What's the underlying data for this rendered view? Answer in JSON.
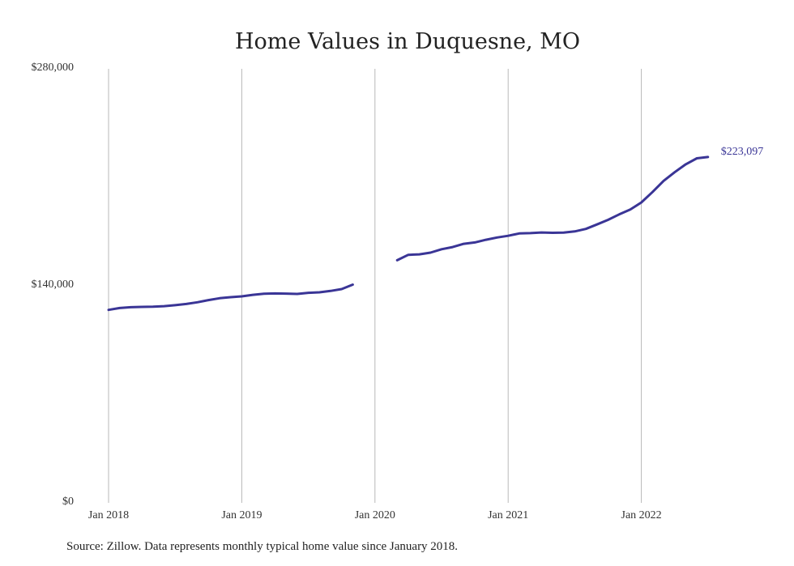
{
  "chart_data": {
    "type": "line",
    "title": "Home Values in Duquesne, MO",
    "xlabel": "",
    "ylabel": "",
    "x_ticks": [
      "Jan 2018",
      "Jan 2019",
      "Jan 2020",
      "Jan 2021",
      "Jan 2022"
    ],
    "y_ticks": [
      "$280,000",
      "$140,000",
      "$0"
    ],
    "y_tick_values": [
      280000,
      140000,
      0
    ],
    "ylim": [
      0,
      280000
    ],
    "xlim": [
      "2018-01",
      "2022-12"
    ],
    "grid": "vertical",
    "series": [
      {
        "color": "#3a3596",
        "end_label": "$223,097",
        "points": [
          {
            "x": "2018-01",
            "y": 124500
          },
          {
            "x": "2018-02",
            "y": 125700
          },
          {
            "x": "2018-03",
            "y": 126200
          },
          {
            "x": "2018-04",
            "y": 126400
          },
          {
            "x": "2018-05",
            "y": 126500
          },
          {
            "x": "2018-06",
            "y": 126900
          },
          {
            "x": "2018-07",
            "y": 127500
          },
          {
            "x": "2018-08",
            "y": 128300
          },
          {
            "x": "2018-09",
            "y": 129400
          },
          {
            "x": "2018-10",
            "y": 130800
          },
          {
            "x": "2018-11",
            "y": 132000
          },
          {
            "x": "2018-12",
            "y": 132700
          },
          {
            "x": "2019-01",
            "y": 133200
          },
          {
            "x": "2019-02",
            "y": 134200
          },
          {
            "x": "2019-03",
            "y": 134900
          },
          {
            "x": "2019-04",
            "y": 135100
          },
          {
            "x": "2019-05",
            "y": 135000
          },
          {
            "x": "2019-06",
            "y": 134800
          },
          {
            "x": "2019-07",
            "y": 135500
          },
          {
            "x": "2019-08",
            "y": 135800
          },
          {
            "x": "2019-09",
            "y": 136700
          },
          {
            "x": "2019-10",
            "y": 137900
          },
          {
            "x": "2019-11",
            "y": 140800
          },
          {
            "x": "2019-12",
            "y": null
          },
          {
            "x": "2020-01",
            "y": null
          },
          {
            "x": "2020-02",
            "y": null
          },
          {
            "x": "2020-03",
            "y": 156500
          },
          {
            "x": "2020-04",
            "y": 160000
          },
          {
            "x": "2020-05",
            "y": 160300
          },
          {
            "x": "2020-06",
            "y": 161400
          },
          {
            "x": "2020-07",
            "y": 163600
          },
          {
            "x": "2020-08",
            "y": 165000
          },
          {
            "x": "2020-09",
            "y": 167100
          },
          {
            "x": "2020-10",
            "y": 168000
          },
          {
            "x": "2020-11",
            "y": 169700
          },
          {
            "x": "2020-12",
            "y": 171200
          },
          {
            "x": "2021-01",
            "y": 172300
          },
          {
            "x": "2021-02",
            "y": 173800
          },
          {
            "x": "2021-03",
            "y": 174000
          },
          {
            "x": "2021-04",
            "y": 174400
          },
          {
            "x": "2021-05",
            "y": 174200
          },
          {
            "x": "2021-06",
            "y": 174300
          },
          {
            "x": "2021-07",
            "y": 175100
          },
          {
            "x": "2021-08",
            "y": 176700
          },
          {
            "x": "2021-09",
            "y": 179600
          },
          {
            "x": "2021-10",
            "y": 182600
          },
          {
            "x": "2021-11",
            "y": 186100
          },
          {
            "x": "2021-12",
            "y": 189200
          },
          {
            "x": "2022-01",
            "y": 193800
          },
          {
            "x": "2022-02",
            "y": 200500
          },
          {
            "x": "2022-03",
            "y": 207700
          },
          {
            "x": "2022-04",
            "y": 213300
          },
          {
            "x": "2022-05",
            "y": 218400
          },
          {
            "x": "2022-06",
            "y": 222300
          },
          {
            "x": "2022-07",
            "y": 223097
          }
        ]
      }
    ]
  },
  "source_text": "Source: Zillow. Data represents monthly typical home value since January 2018."
}
